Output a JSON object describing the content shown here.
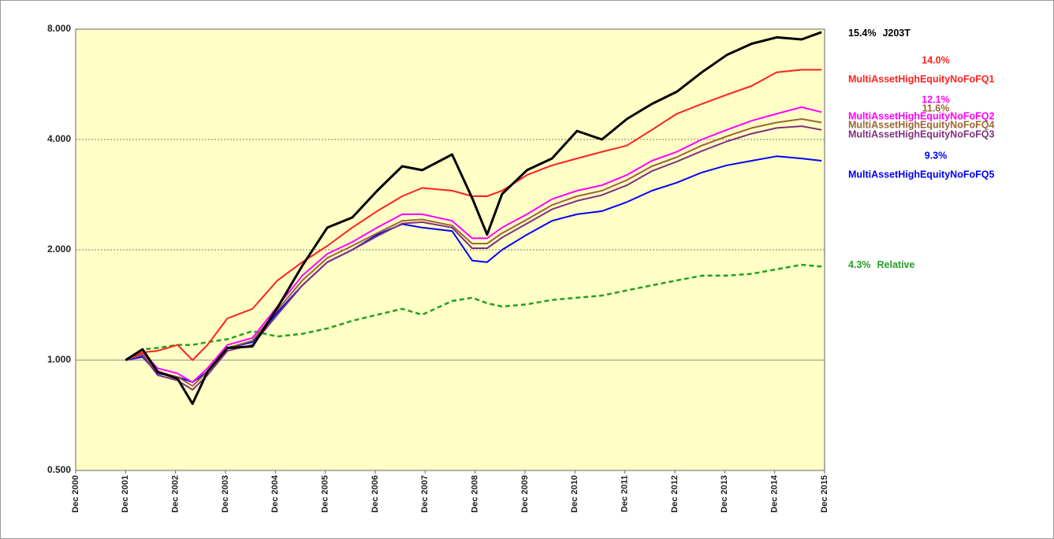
{
  "chart_data": {
    "type": "line",
    "log_scale": true,
    "grid": true,
    "x": [
      2001.96,
      2002.3,
      2002.6,
      2003.0,
      2003.3,
      2003.6,
      2004.0,
      2004.5,
      2005.0,
      2005.5,
      2006.0,
      2006.5,
      2007.0,
      2007.5,
      2007.9,
      2008.5,
      2008.9,
      2009.2,
      2009.5,
      2010.0,
      2010.5,
      2011.0,
      2011.5,
      2012.0,
      2012.5,
      2013.0,
      2013.5,
      2014.0,
      2014.5,
      2015.0,
      2015.5,
      2015.9
    ],
    "xlim": [
      2000.96,
      2015.96
    ],
    "xticks": [
      {
        "value": 2000.96,
        "label": "Dec 2000"
      },
      {
        "value": 2001.96,
        "label": "Dec 2001"
      },
      {
        "value": 2002.96,
        "label": "Dec 2002"
      },
      {
        "value": 2003.96,
        "label": "Dec 2003"
      },
      {
        "value": 2004.96,
        "label": "Dec 2004"
      },
      {
        "value": 2005.96,
        "label": "Dec 2005"
      },
      {
        "value": 2006.96,
        "label": "Dec 2006"
      },
      {
        "value": 2007.96,
        "label": "Dec 2007"
      },
      {
        "value": 2008.96,
        "label": "Dec 2008"
      },
      {
        "value": 2009.96,
        "label": "Dec 2009"
      },
      {
        "value": 2010.96,
        "label": "Dec 2010"
      },
      {
        "value": 2011.96,
        "label": "Dec 2011"
      },
      {
        "value": 2012.96,
        "label": "Dec 2012"
      },
      {
        "value": 2013.96,
        "label": "Dec 2013"
      },
      {
        "value": 2014.96,
        "label": "Dec 2014"
      },
      {
        "value": 2015.96,
        "label": "Dec 2015"
      }
    ],
    "ylim": [
      0.5,
      8
    ],
    "yticks": [
      {
        "value": 0.5,
        "label": "0.500"
      },
      {
        "value": 1,
        "label": "1.000"
      },
      {
        "value": 2,
        "label": "2.000"
      },
      {
        "value": 4,
        "label": "4.000"
      },
      {
        "value": 8,
        "label": "8.000"
      }
    ],
    "series": [
      {
        "name": "J203T",
        "end_label": "15.4%",
        "color": "#000000",
        "values": [
          1.0,
          1.07,
          0.93,
          0.89,
          0.76,
          0.93,
          1.08,
          1.09,
          1.39,
          1.81,
          2.3,
          2.45,
          2.9,
          3.38,
          3.3,
          3.64,
          2.77,
          2.2,
          2.84,
          3.3,
          3.55,
          4.22,
          4.0,
          4.55,
          5.0,
          5.4,
          6.1,
          6.8,
          7.3,
          7.6,
          7.5,
          7.85
        ]
      },
      {
        "name": "MultiAssetHighEquityNoFoFQ1",
        "end_label": "14.0%",
        "color": "#ff2020",
        "values": [
          1.0,
          1.05,
          1.06,
          1.1,
          1.0,
          1.1,
          1.3,
          1.38,
          1.65,
          1.85,
          2.05,
          2.3,
          2.55,
          2.8,
          2.95,
          2.9,
          2.8,
          2.8,
          2.9,
          3.2,
          3.4,
          3.55,
          3.7,
          3.85,
          4.25,
          4.7,
          5.0,
          5.3,
          5.6,
          6.1,
          6.2,
          6.2
        ]
      },
      {
        "name": "MultiAssetHighEquityNoFoFQ2",
        "end_label": "12.1%",
        "color": "#ff00ff",
        "values": [
          1.0,
          1.05,
          0.95,
          0.92,
          0.87,
          0.95,
          1.1,
          1.15,
          1.4,
          1.7,
          1.95,
          2.1,
          2.3,
          2.5,
          2.5,
          2.4,
          2.15,
          2.15,
          2.3,
          2.5,
          2.75,
          2.9,
          3.0,
          3.2,
          3.5,
          3.7,
          4.0,
          4.25,
          4.5,
          4.7,
          4.9,
          4.75
        ]
      },
      {
        "name": "MultiAssetHighEquityNoFoFQ4",
        "end_label": "11.6%",
        "color": "#996633",
        "values": [
          1.0,
          1.04,
          0.93,
          0.9,
          0.85,
          0.93,
          1.08,
          1.13,
          1.37,
          1.65,
          1.9,
          2.05,
          2.22,
          2.4,
          2.42,
          2.33,
          2.08,
          2.08,
          2.22,
          2.42,
          2.65,
          2.8,
          2.9,
          3.1,
          3.38,
          3.58,
          3.85,
          4.08,
          4.3,
          4.45,
          4.55,
          4.45
        ]
      },
      {
        "name": "MultiAssetHighEquityNoFoFQ3",
        "color": "#7f307f",
        "values": [
          1.0,
          1.03,
          0.91,
          0.88,
          0.83,
          0.91,
          1.06,
          1.1,
          1.33,
          1.6,
          1.85,
          2.0,
          2.18,
          2.36,
          2.38,
          2.3,
          2.02,
          2.02,
          2.16,
          2.36,
          2.58,
          2.72,
          2.82,
          3.0,
          3.28,
          3.48,
          3.72,
          3.95,
          4.15,
          4.3,
          4.35,
          4.25
        ]
      },
      {
        "name": "MultiAssetHighEquityNoFoFQ5",
        "end_label": "9.3%",
        "color": "#0000ff",
        "values": [
          1.0,
          1.02,
          0.92,
          0.9,
          0.87,
          0.93,
          1.08,
          1.12,
          1.35,
          1.6,
          1.85,
          2.0,
          2.2,
          2.35,
          2.3,
          2.25,
          1.87,
          1.85,
          2.0,
          2.2,
          2.4,
          2.5,
          2.55,
          2.7,
          2.9,
          3.05,
          3.25,
          3.4,
          3.5,
          3.6,
          3.55,
          3.5
        ]
      },
      {
        "name": "Relative",
        "end_label": "4.3%",
        "color": "#22a022",
        "dashed": true,
        "values": [
          1.0,
          1.07,
          1.08,
          1.1,
          1.1,
          1.12,
          1.14,
          1.2,
          1.16,
          1.18,
          1.22,
          1.28,
          1.33,
          1.38,
          1.33,
          1.45,
          1.48,
          1.43,
          1.4,
          1.42,
          1.46,
          1.48,
          1.5,
          1.55,
          1.6,
          1.65,
          1.7,
          1.7,
          1.72,
          1.77,
          1.82,
          1.8
        ]
      }
    ]
  }
}
